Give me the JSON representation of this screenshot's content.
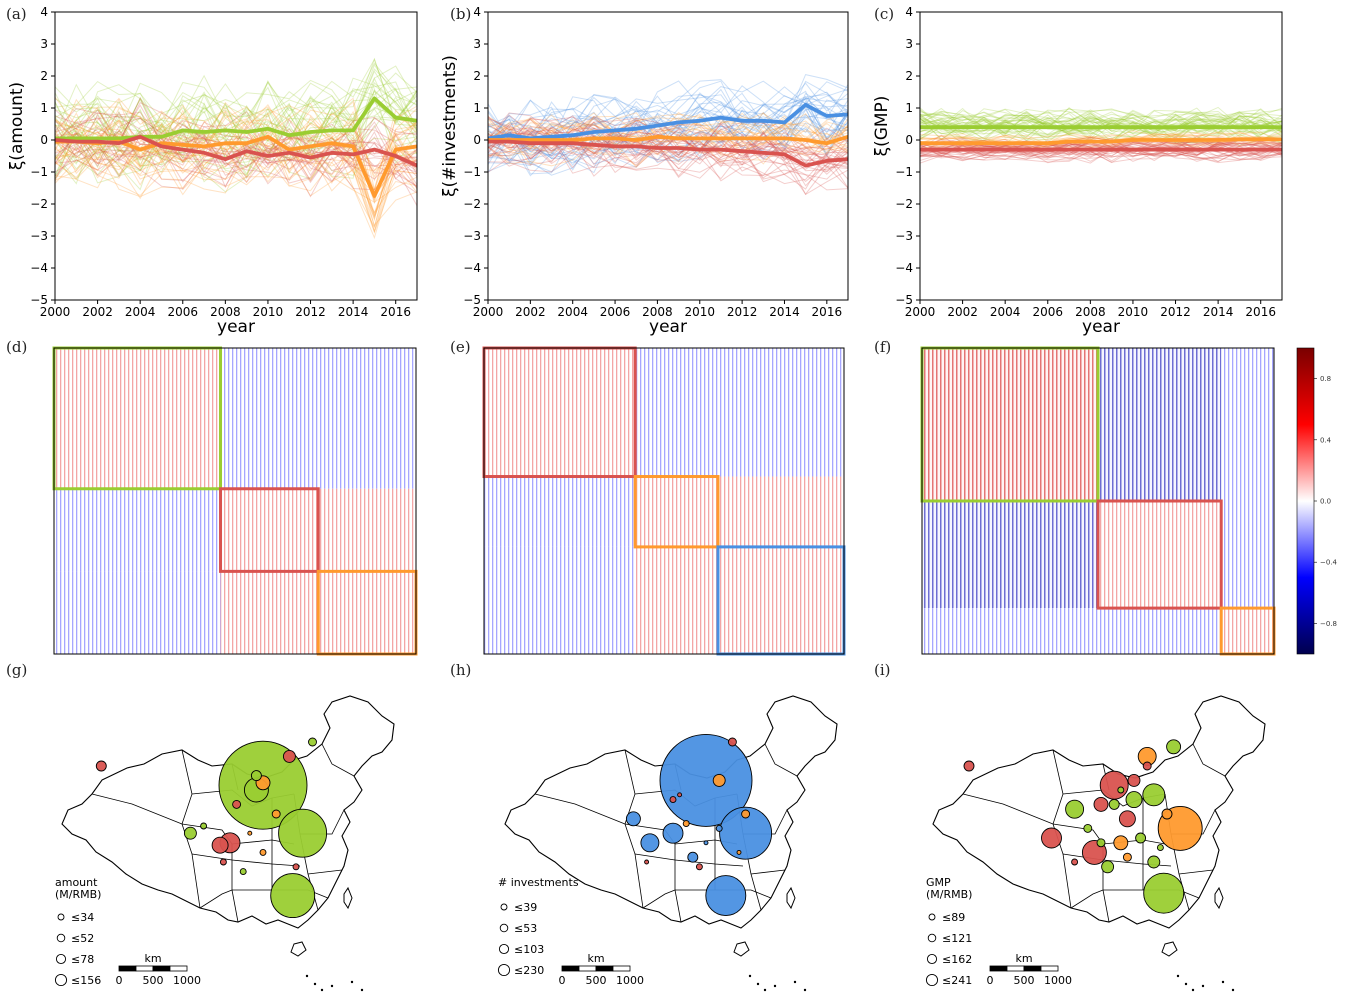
{
  "panel_labels": [
    "(a)",
    "(b)",
    "(c)",
    "(d)",
    "(e)",
    "(f)",
    "(g)",
    "(h)",
    "(i)"
  ],
  "colors": {
    "green": "#9acd32",
    "red": "#d9534f",
    "orange": "#ff9a2e",
    "blue": "#4a90e2"
  },
  "chart_data": [
    {
      "panel": "(a)",
      "type": "line",
      "title": "",
      "xlabel": "year",
      "ylabel": "ξ(amount)",
      "xlim": [
        2000,
        2017
      ],
      "ylim": [
        -5,
        4
      ],
      "x_ticks": [
        "2000",
        "2002",
        "2004",
        "2006",
        "2008",
        "2010",
        "2012",
        "2014",
        "2016"
      ],
      "y_ticks": [
        "−5",
        "−4",
        "−3",
        "−2",
        "−1",
        "0",
        "1",
        "2",
        "3",
        "4"
      ],
      "x": [
        2000,
        2001,
        2002,
        2003,
        2004,
        2005,
        2006,
        2007,
        2008,
        2009,
        2010,
        2011,
        2012,
        2013,
        2014,
        2015,
        2016,
        2017
      ],
      "series": [
        {
          "color": "green",
          "values": [
            0.05,
            0.05,
            0.05,
            0.05,
            0.1,
            0.1,
            0.3,
            0.25,
            0.3,
            0.25,
            0.35,
            0.15,
            0.25,
            0.3,
            0.3,
            1.3,
            0.7,
            0.6
          ]
        },
        {
          "color": "orange",
          "values": [
            -0.05,
            -0.05,
            -0.1,
            -0.05,
            -0.3,
            -0.1,
            -0.15,
            -0.2,
            -0.1,
            -0.1,
            0.1,
            -0.3,
            -0.2,
            -0.1,
            -0.2,
            -1.75,
            -0.3,
            -0.2
          ]
        },
        {
          "color": "red",
          "values": [
            0,
            -0.05,
            -0.05,
            -0.1,
            0.1,
            -0.2,
            -0.3,
            -0.4,
            -0.6,
            -0.35,
            -0.5,
            -0.4,
            -0.55,
            -0.4,
            -0.45,
            -0.3,
            -0.5,
            -0.8
          ]
        }
      ],
      "background_lines": {
        "groups": [
          {
            "color": "green",
            "count": 30,
            "spread": 1.3
          },
          {
            "color": "orange",
            "count": 30,
            "spread": 1.1
          },
          {
            "color": "red",
            "count": 20,
            "spread": 0.9
          }
        ]
      }
    },
    {
      "panel": "(b)",
      "type": "line",
      "title": "",
      "xlabel": "year",
      "ylabel": "ξ(#investments)",
      "xlim": [
        2000,
        2017
      ],
      "ylim": [
        -5,
        4
      ],
      "x_ticks": [
        "2000",
        "2002",
        "2004",
        "2006",
        "2008",
        "2010",
        "2012",
        "2014",
        "2016"
      ],
      "y_ticks": [
        "−5",
        "−4",
        "−3",
        "−2",
        "−1",
        "0",
        "1",
        "2",
        "3",
        "4"
      ],
      "x": [
        2000,
        2001,
        2002,
        2003,
        2004,
        2005,
        2006,
        2007,
        2008,
        2009,
        2010,
        2011,
        2012,
        2013,
        2014,
        2015,
        2016,
        2017
      ],
      "series": [
        {
          "color": "blue",
          "values": [
            0.05,
            0.15,
            0.05,
            0.1,
            0.15,
            0.25,
            0.3,
            0.35,
            0.45,
            0.55,
            0.6,
            0.7,
            0.6,
            0.6,
            0.55,
            1.1,
            0.75,
            0.8
          ]
        },
        {
          "color": "orange",
          "values": [
            0,
            0,
            0,
            0,
            0,
            0.05,
            0.05,
            0,
            0.1,
            0.05,
            0.05,
            0.05,
            0.05,
            0.05,
            0.05,
            0,
            -0.1,
            0.1
          ]
        },
        {
          "color": "red",
          "values": [
            -0.05,
            -0.05,
            -0.1,
            -0.1,
            -0.1,
            -0.15,
            -0.2,
            -0.2,
            -0.25,
            -0.25,
            -0.3,
            -0.3,
            -0.35,
            -0.4,
            -0.45,
            -0.8,
            -0.65,
            -0.6
          ]
        }
      ],
      "background_lines": {
        "groups": [
          {
            "color": "blue",
            "count": 30,
            "spread": 0.9
          },
          {
            "color": "orange",
            "count": 20,
            "spread": 0.6
          },
          {
            "color": "red",
            "count": 30,
            "spread": 0.7
          }
        ]
      }
    },
    {
      "panel": "(c)",
      "type": "line",
      "title": "",
      "xlabel": "year",
      "ylabel": "ξ(GMP)",
      "xlim": [
        2000,
        2017
      ],
      "ylim": [
        -5,
        4
      ],
      "x_ticks": [
        "2000",
        "2002",
        "2004",
        "2006",
        "2008",
        "2010",
        "2012",
        "2014",
        "2016"
      ],
      "y_ticks": [
        "−5",
        "−4",
        "−3",
        "−2",
        "−1",
        "0",
        "1",
        "2",
        "3",
        "4"
      ],
      "x": [
        2000,
        2001,
        2002,
        2003,
        2004,
        2005,
        2006,
        2007,
        2008,
        2009,
        2010,
        2011,
        2012,
        2013,
        2014,
        2015,
        2016,
        2017
      ],
      "series": [
        {
          "color": "green",
          "values": [
            0.4,
            0.4,
            0.4,
            0.4,
            0.4,
            0.4,
            0.4,
            0.4,
            0.4,
            0.4,
            0.4,
            0.4,
            0.4,
            0.4,
            0.4,
            0.4,
            0.4,
            0.4
          ]
        },
        {
          "color": "orange",
          "values": [
            -0.1,
            -0.1,
            -0.1,
            -0.1,
            -0.1,
            -0.1,
            -0.1,
            -0.05,
            -0.05,
            -0.05,
            0,
            0,
            0,
            0,
            0,
            0.02,
            0.02,
            0.02
          ]
        },
        {
          "color": "red",
          "values": [
            -0.3,
            -0.3,
            -0.3,
            -0.3,
            -0.3,
            -0.3,
            -0.3,
            -0.3,
            -0.3,
            -0.3,
            -0.3,
            -0.3,
            -0.3,
            -0.3,
            -0.3,
            -0.3,
            -0.3,
            -0.3
          ]
        }
      ],
      "background_lines": {
        "groups": [
          {
            "color": "green",
            "count": 40,
            "spread": 0.45
          },
          {
            "color": "orange",
            "count": 15,
            "spread": 0.2
          },
          {
            "color": "red",
            "count": 35,
            "spread": 0.3
          }
        ]
      }
    },
    {
      "panel": "(d)",
      "type": "heatmap",
      "blocks": [
        {
          "color": "green",
          "from": 0,
          "to": 0.46
        },
        {
          "color": "red",
          "from": 0.46,
          "to": 0.73
        },
        {
          "color": "orange",
          "from": 0.73,
          "to": 1
        }
      ]
    },
    {
      "panel": "(e)",
      "type": "heatmap",
      "blocks": [
        {
          "color": "red",
          "from": 0,
          "to": 0.42
        },
        {
          "color": "orange",
          "from": 0.42,
          "to": 0.65
        },
        {
          "color": "blue",
          "from": 0.65,
          "to": 1
        }
      ]
    },
    {
      "panel": "(f)",
      "type": "heatmap",
      "blocks": [
        {
          "color": "green",
          "from": 0,
          "to": 0.5
        },
        {
          "color": "red",
          "from": 0.5,
          "to": 0.85
        },
        {
          "color": "orange",
          "from": 0.85,
          "to": 1
        }
      ],
      "colorbar": {
        "ticks": [
          "0.8",
          "0.4",
          "0.0",
          "−0.4",
          "−0.8"
        ],
        "range": [
          -1,
          1
        ]
      }
    }
  ],
  "maps": [
    {
      "panel": "(g)",
      "legend_title": [
        "amount",
        "(M/RMB)"
      ],
      "legend_items": [
        "≤34",
        "≤52",
        "≤78",
        "≤156"
      ],
      "scalebar": {
        "unit": "km",
        "ticks": [
          "0",
          "500",
          "1000"
        ]
      },
      "bubbles": [
        [
          "green",
          44
        ],
        [
          "green",
          24
        ],
        [
          "green",
          22
        ],
        [
          "green",
          12
        ],
        [
          "red",
          10
        ],
        [
          "red",
          8
        ],
        [
          "orange",
          7
        ],
        [
          "red",
          6
        ],
        [
          "green",
          6
        ],
        [
          "red",
          5
        ],
        [
          "green",
          5
        ],
        [
          "orange",
          4
        ],
        [
          "red",
          4
        ],
        [
          "green",
          4
        ],
        [
          "red",
          3
        ],
        [
          "orange",
          3
        ],
        [
          "green",
          3
        ],
        [
          "red",
          3
        ],
        [
          "green",
          3
        ],
        [
          "orange",
          2
        ]
      ]
    },
    {
      "panel": "(h)",
      "legend_title": [
        "# investments"
      ],
      "legend_items": [
        "≤39",
        "≤53",
        "≤103",
        "≤230"
      ],
      "scalebar": {
        "unit": "km",
        "ticks": [
          "0",
          "500",
          "1000"
        ]
      },
      "bubbles": [
        [
          "blue",
          46
        ],
        [
          "blue",
          26
        ],
        [
          "blue",
          20
        ],
        [
          "blue",
          10
        ],
        [
          "blue",
          9
        ],
        [
          "blue",
          7
        ],
        [
          "orange",
          6
        ],
        [
          "blue",
          5
        ],
        [
          "red",
          4
        ],
        [
          "orange",
          4
        ],
        [
          "red",
          3
        ],
        [
          "blue",
          3
        ],
        [
          "red",
          3
        ],
        [
          "orange",
          3
        ],
        [
          "red",
          2
        ],
        [
          "blue",
          2
        ],
        [
          "red",
          2
        ],
        [
          "orange",
          2
        ]
      ]
    },
    {
      "panel": "(i)",
      "legend_title": [
        "GMP",
        "(M/RMB)"
      ],
      "legend_items": [
        "≤89",
        "≤121",
        "≤162",
        "≤241"
      ],
      "scalebar": {
        "unit": "km",
        "ticks": [
          "0",
          "500",
          "1000"
        ]
      },
      "bubbles": [
        [
          "orange",
          22
        ],
        [
          "green",
          20
        ],
        [
          "red",
          14
        ],
        [
          "red",
          12
        ],
        [
          "green",
          11
        ],
        [
          "red",
          10
        ],
        [
          "orange",
          9
        ],
        [
          "green",
          9
        ],
        [
          "red",
          8
        ],
        [
          "green",
          8
        ],
        [
          "green",
          7
        ],
        [
          "orange",
          7
        ],
        [
          "red",
          7
        ],
        [
          "green",
          6
        ],
        [
          "red",
          6
        ],
        [
          "green",
          6
        ],
        [
          "orange",
          5
        ],
        [
          "green",
          5
        ],
        [
          "red",
          5
        ],
        [
          "green",
          5
        ],
        [
          "green",
          4
        ],
        [
          "red",
          4
        ],
        [
          "orange",
          4
        ],
        [
          "green",
          4
        ],
        [
          "green",
          3
        ],
        [
          "red",
          3
        ],
        [
          "green",
          3
        ]
      ]
    }
  ]
}
